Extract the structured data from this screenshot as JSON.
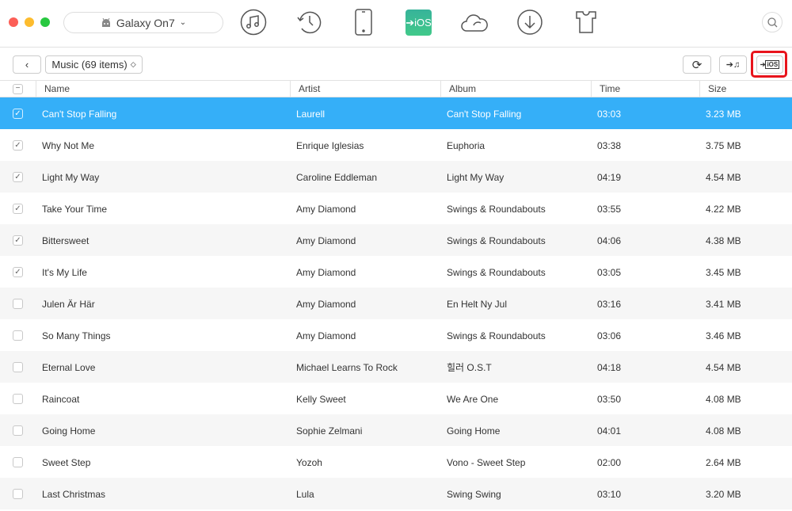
{
  "window": {
    "traffic_colors": [
      "#fc5f57",
      "#fdbc2e",
      "#28c840"
    ]
  },
  "device": {
    "name": "Galaxy On7",
    "icon": "android-icon"
  },
  "toolbar": {
    "icons": [
      "music-icon",
      "history-icon",
      "phone-icon",
      "to-ios-icon",
      "cloud-icon",
      "download-icon",
      "tshirt-icon"
    ],
    "active": "to-ios-icon",
    "ios_label": "iOS",
    "active_color": "#3cc48b"
  },
  "nav": {
    "category": "Music (69 items)",
    "actions": [
      "refresh-icon",
      "to-itunes-icon",
      "to-ios-icon"
    ],
    "highlighted_action": "to-ios-icon",
    "small_ios_label": "iOS"
  },
  "columns": [
    "Name",
    "Artist",
    "Album",
    "Time",
    "Size"
  ],
  "selection_color": "#35aff8",
  "rows": [
    {
      "name": "Can't Stop Falling",
      "artist": "Laurell",
      "album": "Can't Stop Falling",
      "time": "03:03",
      "size": "3.23 MB",
      "checked": true,
      "selected": true
    },
    {
      "name": "Why Not Me",
      "artist": "Enrique Iglesias",
      "album": "Euphoria",
      "time": "03:38",
      "size": "3.75 MB",
      "checked": true
    },
    {
      "name": "Light My Way",
      "artist": "Caroline Eddleman",
      "album": "Light My Way",
      "time": "04:19",
      "size": "4.54 MB",
      "checked": true
    },
    {
      "name": "Take Your Time",
      "artist": "Amy Diamond",
      "album": "Swings & Roundabouts",
      "time": "03:55",
      "size": "4.22 MB",
      "checked": true
    },
    {
      "name": "Bittersweet",
      "artist": "Amy Diamond",
      "album": "Swings & Roundabouts",
      "time": "04:06",
      "size": "4.38 MB",
      "checked": true
    },
    {
      "name": "It's My Life",
      "artist": "Amy Diamond",
      "album": "Swings & Roundabouts",
      "time": "03:05",
      "size": "3.45 MB",
      "checked": true
    },
    {
      "name": "Julen Är Här",
      "artist": "Amy Diamond",
      "album": "En Helt Ny Jul",
      "time": "03:16",
      "size": "3.41 MB",
      "checked": false
    },
    {
      "name": "So Many Things",
      "artist": "Amy Diamond",
      "album": "Swings & Roundabouts",
      "time": "03:06",
      "size": "3.46 MB",
      "checked": false
    },
    {
      "name": "Eternal Love",
      "artist": "Michael Learns To Rock",
      "album": "힐러 O.S.T",
      "time": "04:18",
      "size": "4.54 MB",
      "checked": false
    },
    {
      "name": "Raincoat",
      "artist": "Kelly Sweet",
      "album": "We Are One",
      "time": "03:50",
      "size": "4.08 MB",
      "checked": false
    },
    {
      "name": "Going Home",
      "artist": "Sophie Zelmani",
      "album": "Going Home",
      "time": "04:01",
      "size": "4.08 MB",
      "checked": false
    },
    {
      "name": "Sweet Step",
      "artist": "Yozoh",
      "album": "Vono - Sweet Step",
      "time": "02:00",
      "size": "2.64 MB",
      "checked": false
    },
    {
      "name": "Last Christmas",
      "artist": "Lula",
      "album": "Swing Swing",
      "time": "03:10",
      "size": "3.20 MB",
      "checked": false
    }
  ]
}
